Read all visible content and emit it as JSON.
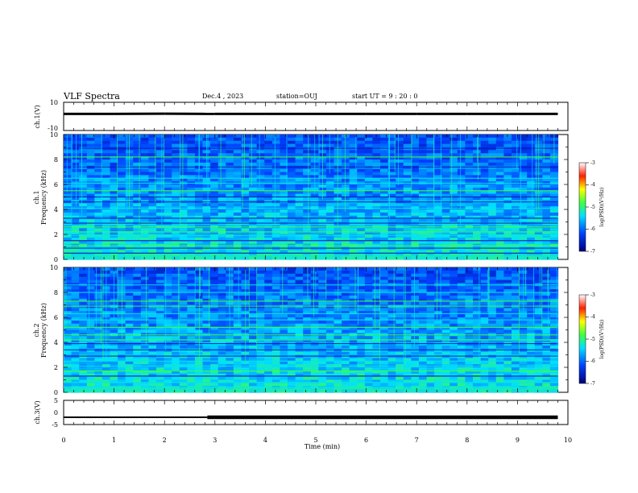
{
  "header": {
    "title": "VLF Spectra",
    "date": "Dec.4  , 2023",
    "station": "station=OUJ",
    "start": "start  UT =   9 : 20 : 0"
  },
  "chart_data": [
    {
      "type": "line",
      "name": "ch1-waveform",
      "ylabel": "ch.1(V)",
      "ylim": [
        -10,
        10
      ],
      "yticks": [
        "10",
        "-10"
      ],
      "x": [
        0,
        1,
        2,
        3,
        4,
        5,
        6,
        7,
        8,
        9,
        9.8
      ],
      "y": [
        1.8,
        1.8,
        1.9,
        1.8,
        1.8,
        1.8,
        1.8,
        1.8,
        1.8,
        1.8,
        1.8
      ]
    },
    {
      "type": "heatmap",
      "name": "ch1-spectrogram",
      "ylabel_top": "ch.1",
      "ylabel": "Frequency (kHz)",
      "ylim": [
        0,
        10
      ],
      "yticks": [
        "0",
        "2",
        "4",
        "6",
        "8",
        "10"
      ],
      "xlim": [
        0,
        10
      ],
      "data_until_min": 9.8,
      "colorbar": {
        "label": "log(PSD)(V²/Hz)",
        "ticks": [
          "-3",
          "-4",
          "-5",
          "-6",
          "-7"
        ],
        "range": [
          -7,
          -3
        ]
      },
      "persistent_lines_khz": [
        0.5,
        0.9,
        1.1,
        1.5,
        1.9,
        2.2,
        2.6,
        2.9,
        3.3,
        4.1,
        4.6,
        5.0,
        5.5,
        6.1,
        6.5,
        7.4,
        8.2,
        8.9
      ]
    },
    {
      "type": "heatmap",
      "name": "ch2-spectrogram",
      "ylabel_top": "ch.2",
      "ylabel": "Frequency (kHz)",
      "ylim": [
        0,
        10
      ],
      "yticks": [
        "0",
        "2",
        "4",
        "6",
        "8",
        "10"
      ],
      "xlim": [
        0,
        10
      ],
      "data_until_min": 9.8,
      "colorbar": {
        "label": "log(PSD)(V²/Hz)",
        "ticks": [
          "-3",
          "-4",
          "-5",
          "-6",
          "-7"
        ],
        "range": [
          -7,
          -3
        ]
      },
      "persistent_lines_khz": [
        0.4,
        0.8,
        1.3,
        1.7,
        2.1,
        2.5,
        2.9,
        3.4,
        3.9,
        4.2,
        4.6,
        5.2,
        5.8,
        6.3,
        6.9,
        7.3,
        8.0,
        8.6
      ]
    },
    {
      "type": "line",
      "name": "ch3-level",
      "ylabel": "ch.3(V)",
      "ylim": [
        -5,
        5
      ],
      "yticks": [
        "5",
        "0",
        "-5"
      ],
      "x": [
        0,
        2.85,
        2.85,
        9.8
      ],
      "y": [
        -2.0,
        -2.0,
        -2.0,
        -2.0
      ]
    }
  ],
  "xaxis": {
    "label": "Time  (min)",
    "ticks": [
      "0",
      "1",
      "2",
      "3",
      "4",
      "5",
      "6",
      "7",
      "8",
      "9",
      "10"
    ],
    "xlim": [
      0,
      10
    ]
  }
}
